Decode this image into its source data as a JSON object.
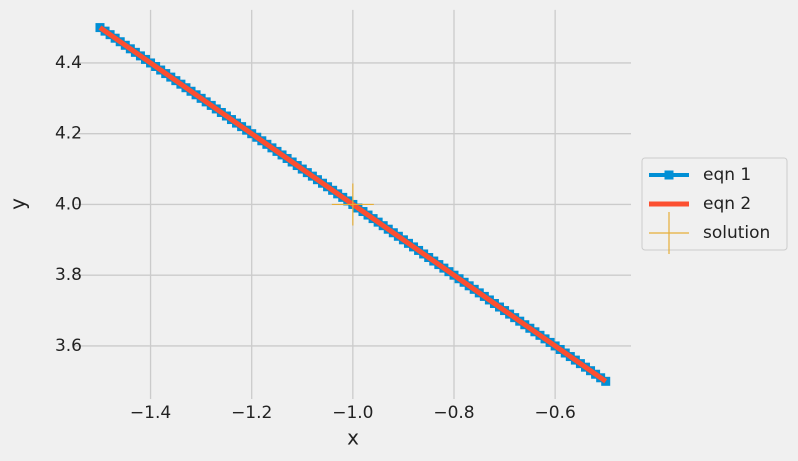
{
  "chart_data": {
    "type": "line",
    "x_label": "x",
    "y_label": "y",
    "xlim": [
      -1.55,
      -0.45
    ],
    "ylim": [
      3.45,
      4.55
    ],
    "xticks": [
      {
        "value": -1.4,
        "label": "−1.4"
      },
      {
        "value": -1.2,
        "label": "−1.2"
      },
      {
        "value": -1.0,
        "label": "−1.0"
      },
      {
        "value": -0.8,
        "label": "−0.8"
      },
      {
        "value": -0.6,
        "label": "−0.6"
      }
    ],
    "yticks": [
      3.6,
      3.8,
      {
        "value": 4,
        "label": "4.0"
      },
      4.2,
      4.4
    ],
    "grid": true,
    "legend": "right",
    "series": [
      {
        "name": "eqn 1",
        "color": "#008fd5",
        "marker": "square",
        "x": [
          -1.5,
          -1.49,
          -1.48,
          -1.47,
          -1.46,
          -1.45,
          -1.44,
          -1.43,
          -1.42,
          -1.41,
          -1.4,
          -1.39,
          -1.38,
          -1.37,
          -1.36,
          -1.35,
          -1.34,
          -1.33,
          -1.32,
          -1.31,
          -1.3,
          -1.29,
          -1.28,
          -1.27,
          -1.26,
          -1.25,
          -1.24,
          -1.23,
          -1.22,
          -1.21,
          -1.2,
          -1.19,
          -1.18,
          -1.17,
          -1.16,
          -1.15,
          -1.14,
          -1.13,
          -1.12,
          -1.11,
          -1.1,
          -1.09,
          -1.08,
          -1.07,
          -1.06,
          -1.05,
          -1.04,
          -1.03,
          -1.02,
          -1.01,
          -1.0,
          -0.99,
          -0.98,
          -0.97,
          -0.96,
          -0.95,
          -0.94,
          -0.93,
          -0.92,
          -0.91,
          -0.9,
          -0.89,
          -0.88,
          -0.87,
          -0.86,
          -0.85,
          -0.84,
          -0.83,
          -0.82,
          -0.81,
          -0.8,
          -0.79,
          -0.78,
          -0.77,
          -0.76,
          -0.75,
          -0.74,
          -0.73,
          -0.72,
          -0.71,
          -0.7,
          -0.69,
          -0.68,
          -0.67,
          -0.66,
          -0.65,
          -0.64,
          -0.63,
          -0.62,
          -0.61,
          -0.6,
          -0.59,
          -0.58,
          -0.57,
          -0.56,
          -0.55,
          -0.54,
          -0.53,
          -0.52,
          -0.51,
          -0.5
        ],
        "values": [
          4.5,
          4.49,
          4.48,
          4.47,
          4.46,
          4.45,
          4.44,
          4.43,
          4.42,
          4.41,
          4.4,
          4.39,
          4.38,
          4.37,
          4.36,
          4.35,
          4.34,
          4.33,
          4.32,
          4.31,
          4.3,
          4.29,
          4.28,
          4.27,
          4.26,
          4.25,
          4.24,
          4.23,
          4.22,
          4.21,
          4.2,
          4.19,
          4.18,
          4.17,
          4.16,
          4.15,
          4.14,
          4.13,
          4.12,
          4.11,
          4.1,
          4.09,
          4.08,
          4.07,
          4.06,
          4.05,
          4.04,
          4.03,
          4.02,
          4.01,
          4.0,
          3.99,
          3.98,
          3.97,
          3.96,
          3.95,
          3.94,
          3.93,
          3.92,
          3.91,
          3.9,
          3.89,
          3.88,
          3.87,
          3.86,
          3.85,
          3.84,
          3.83,
          3.82,
          3.81,
          3.8,
          3.79,
          3.78,
          3.77,
          3.76,
          3.75,
          3.74,
          3.73,
          3.72,
          3.71,
          3.7,
          3.69,
          3.68,
          3.67,
          3.66,
          3.65,
          3.64,
          3.63,
          3.62,
          3.61,
          3.6,
          3.59,
          3.58,
          3.57,
          3.56,
          3.55,
          3.54,
          3.53,
          3.52,
          3.51,
          3.5
        ]
      },
      {
        "name": "eqn 2",
        "color": "#fc4f30",
        "marker": "none",
        "x": [
          -1.5,
          -0.5
        ],
        "values": [
          4.5,
          3.5
        ]
      },
      {
        "name": "solution",
        "color": "#e5ae38",
        "marker": "plus",
        "x": [
          -1
        ],
        "values": [
          4
        ]
      }
    ]
  }
}
